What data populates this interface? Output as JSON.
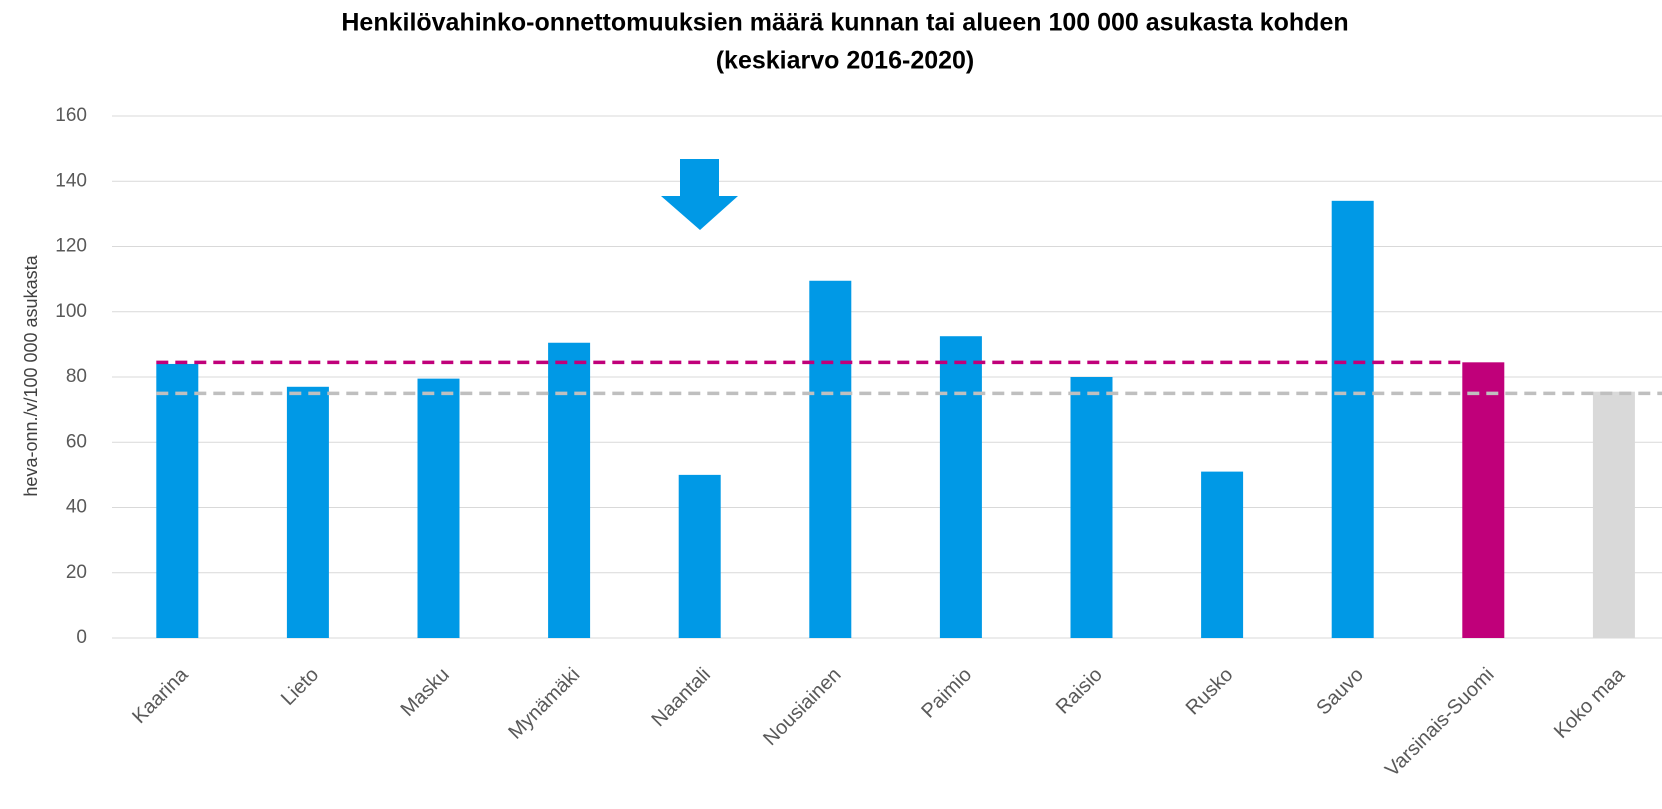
{
  "chart_data": {
    "type": "bar",
    "title": "Henkilövahinko-onnettomuuksien määrä kunnan tai alueen 100 000 asukasta kohden",
    "subtitle": "(keskiarvo 2016-2020)",
    "y_label": "heva-onn./v/100 000 asukasta",
    "categories": [
      "Kaarina",
      "Lieto",
      "Masku",
      "Mynämäki",
      "Naantali",
      "Nousiainen",
      "Paimio",
      "Raisio",
      "Rusko",
      "Sauvo",
      "Varsinais-Suomi",
      "Koko maa"
    ],
    "values": [
      84,
      77,
      79.5,
      90.5,
      50,
      109.5,
      92.5,
      80,
      51,
      134,
      84.5,
      75.5
    ],
    "colors": [
      "#0099e6",
      "#0099e6",
      "#0099e6",
      "#0099e6",
      "#0099e6",
      "#0099e6",
      "#0099e6",
      "#0099e6",
      "#0099e6",
      "#0099e6",
      "#c0007a",
      "#d9d9d9"
    ],
    "reference_lines": [
      {
        "value": 84.5,
        "color": "#c0007a"
      },
      {
        "value": 75,
        "color": "#bfbfbf"
      }
    ],
    "ylim": [
      0,
      160
    ],
    "yticks": [
      0,
      20,
      40,
      60,
      80,
      100,
      120,
      140,
      160
    ],
    "grid": true
  }
}
